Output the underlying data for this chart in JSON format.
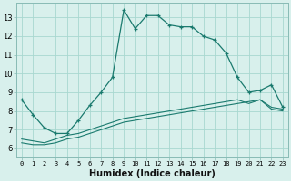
{
  "xlabel": "Humidex (Indice chaleur)",
  "x": [
    0,
    1,
    2,
    3,
    4,
    5,
    6,
    7,
    8,
    9,
    10,
    11,
    12,
    13,
    14,
    15,
    16,
    17,
    18,
    19,
    20,
    21,
    22,
    23
  ],
  "line1": [
    8.6,
    7.8,
    7.1,
    6.8,
    6.8,
    7.5,
    8.3,
    9.0,
    9.8,
    13.4,
    12.4,
    13.1,
    13.1,
    12.6,
    12.5,
    12.5,
    12.0,
    11.8,
    11.1,
    9.8,
    9.0,
    9.1,
    9.4,
    8.2
  ],
  "line2": [
    6.3,
    6.2,
    6.2,
    6.3,
    6.5,
    6.6,
    6.8,
    7.0,
    7.2,
    7.4,
    7.5,
    7.6,
    7.7,
    7.8,
    7.9,
    8.0,
    8.1,
    8.2,
    8.3,
    8.4,
    8.5,
    8.6,
    8.1,
    8.0
  ],
  "line3": [
    6.5,
    6.4,
    6.3,
    6.5,
    6.7,
    6.8,
    7.0,
    7.2,
    7.4,
    7.6,
    7.7,
    7.8,
    7.9,
    8.0,
    8.1,
    8.2,
    8.3,
    8.4,
    8.5,
    8.6,
    8.4,
    8.6,
    8.2,
    8.1
  ],
  "line_color": "#1a7a6e",
  "bg_color": "#d8f0ec",
  "grid_color": "#a8d8d0",
  "ylim": [
    5.5,
    13.8
  ],
  "xlim": [
    -0.5,
    23.5
  ],
  "yticks": [
    6,
    7,
    8,
    9,
    10,
    11,
    12,
    13
  ],
  "xtick_fontsize": 5.0,
  "ytick_fontsize": 6.0,
  "xlabel_fontsize": 7.0
}
